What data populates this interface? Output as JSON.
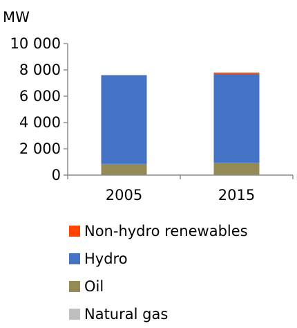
{
  "chart_data": {
    "type": "bar",
    "stacked": true,
    "unit_label": "MW",
    "title": "",
    "xlabel": "",
    "ylabel": "",
    "categories": [
      "2005",
      "2015"
    ],
    "ylim": [
      0,
      10000
    ],
    "yticks": [
      0,
      2000,
      4000,
      6000,
      8000,
      10000
    ],
    "ytick_labels": [
      "0",
      "2 000",
      "4 000",
      "6 000",
      "8 000",
      "10 000"
    ],
    "grid": false,
    "legend_position": "bottom",
    "series": [
      {
        "name": "Natural gas",
        "color": "#bfbfbf",
        "values": [
          0,
          0
        ]
      },
      {
        "name": "Oil",
        "color": "#948a54",
        "values": [
          850,
          950
        ]
      },
      {
        "name": "Hydro",
        "color": "#4472c4",
        "values": [
          6750,
          6750
        ]
      },
      {
        "name": "Non-hydro renewables",
        "color": "#ff4500",
        "values": [
          0,
          100
        ]
      }
    ],
    "legend_order": [
      "Non-hydro renewables",
      "Hydro",
      "Oil",
      "Natural gas"
    ]
  }
}
